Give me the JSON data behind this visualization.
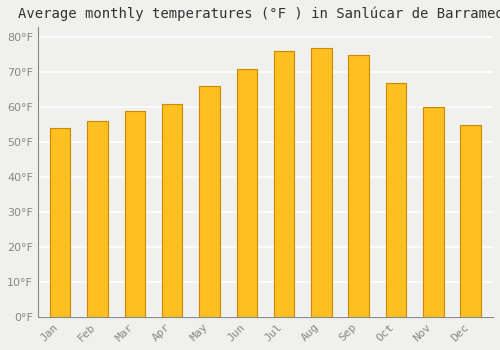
{
  "title": "Average monthly temperatures (°F ) in Sanlúcar de Barrameda",
  "months": [
    "Jan",
    "Feb",
    "Mar",
    "Apr",
    "May",
    "Jun",
    "Jul",
    "Aug",
    "Sep",
    "Oct",
    "Nov",
    "Dec"
  ],
  "values": [
    54,
    56,
    59,
    61,
    66,
    71,
    76,
    77,
    75,
    67,
    60,
    55
  ],
  "bar_color": "#FFC020",
  "bar_edge_color": "#CC8800",
  "background_color": "#f0f0ee",
  "grid_color": "#ffffff",
  "ylim": [
    0,
    83
  ],
  "yticks": [
    0,
    10,
    20,
    30,
    40,
    50,
    60,
    70,
    80
  ],
  "title_fontsize": 10,
  "tick_fontsize": 8,
  "tick_color": "#888888",
  "font_family": "monospace",
  "bar_width": 0.55
}
